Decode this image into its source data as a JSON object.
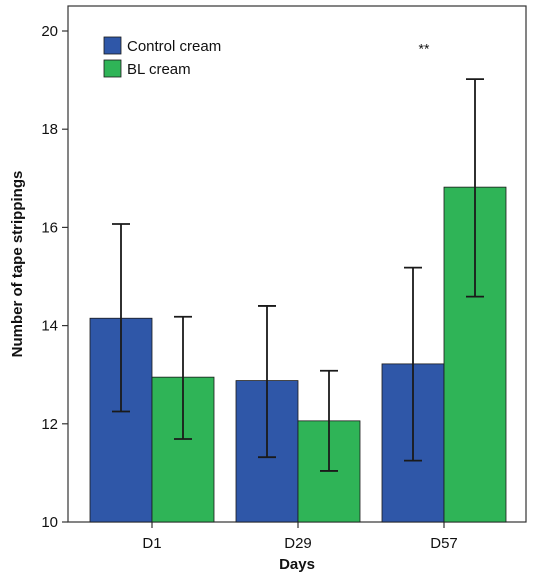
{
  "chart_data": {
    "type": "bar",
    "categories": [
      "D1",
      "D29",
      "D57"
    ],
    "series": [
      {
        "name": "Control cream",
        "color": "#2f57a8",
        "values": [
          14.15,
          12.88,
          13.22
        ],
        "error_low": [
          12.25,
          11.32,
          11.25
        ],
        "error_high": [
          16.07,
          14.4,
          15.18
        ]
      },
      {
        "name": "BL cream",
        "color": "#2fb457",
        "values": [
          12.95,
          12.06,
          16.82
        ],
        "error_low": [
          11.69,
          11.04,
          14.59
        ],
        "error_high": [
          14.18,
          13.08,
          19.02
        ]
      }
    ],
    "title": "",
    "xlabel": "Days",
    "ylabel": "Number of tape strippings",
    "ylim": [
      10,
      21
    ],
    "yticks": [
      10,
      12,
      14,
      16,
      18,
      20
    ],
    "grid": false,
    "legend_position": "top-left",
    "annotations": [
      {
        "text": "**",
        "category": "D57",
        "y": 19.7
      }
    ]
  }
}
